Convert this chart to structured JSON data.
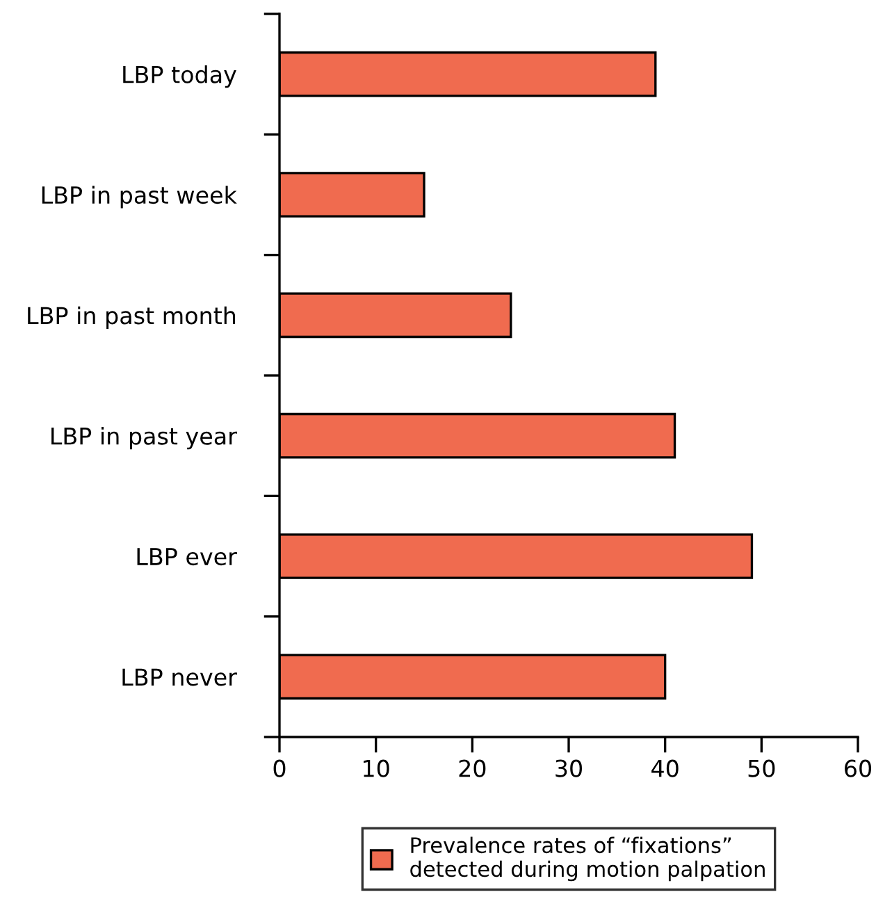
{
  "chart_data": {
    "type": "bar",
    "orientation": "horizontal",
    "categories": [
      "LBP today",
      "LBP in past week",
      "LBP in past month",
      "LBP in past year",
      "LBP ever",
      "LBP never"
    ],
    "series": [
      {
        "name": "Prevalence rates of “fixations”\ndetected during motion palpation",
        "color": "#f06b4f",
        "values": [
          39,
          15,
          24,
          41,
          49,
          40
        ]
      }
    ],
    "xlim": [
      0,
      60
    ],
    "xticks": [
      0,
      10,
      20,
      30,
      40,
      50,
      60
    ],
    "grid": false,
    "legend": "bottom"
  }
}
